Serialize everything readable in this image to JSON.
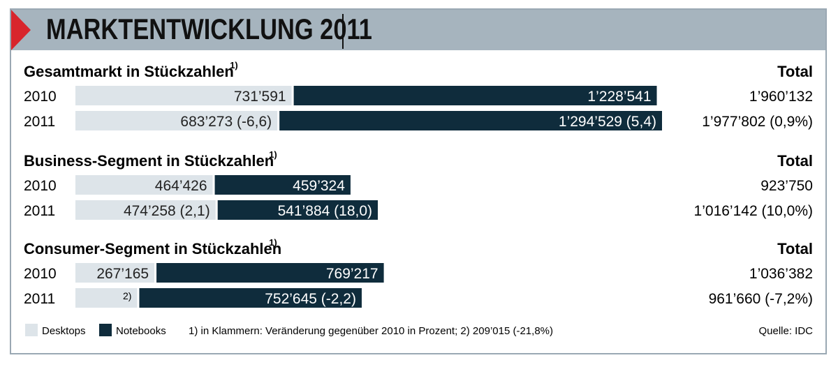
{
  "header": {
    "title": "MARKTENTWICKLUNG 2011"
  },
  "colors": {
    "desktops": "#dde4e9",
    "notebooks": "#0f2c3c",
    "header_bg": "#a6b4be",
    "accent": "#d8252c"
  },
  "chart_data": {
    "type": "bar",
    "stacked": true,
    "orientation": "horizontal",
    "series_names": [
      "Desktops",
      "Notebooks"
    ],
    "total_label": "Total",
    "groups": [
      {
        "title": "Gesamtmarkt in Stückzahlen",
        "title_sup": "1)",
        "rows": [
          {
            "year": "2010",
            "desktops": 731591,
            "notebooks": 1228541,
            "desktops_label": "731’591",
            "notebooks_label": "1’228’541",
            "total_label": "1’960’132"
          },
          {
            "year": "2011",
            "desktops": 683273,
            "notebooks": 1294529,
            "desktops_label": "683’273 (-6,6)",
            "notebooks_label": "1’294’529 (5,4)",
            "total_label": "1’977’802 (0,9%)"
          }
        ]
      },
      {
        "title": "Business-Segment in Stückzahlen",
        "title_sup": "1)",
        "rows": [
          {
            "year": "2010",
            "desktops": 464426,
            "notebooks": 459324,
            "desktops_label": "464’426",
            "notebooks_label": "459’324",
            "total_label": "923’750"
          },
          {
            "year": "2011",
            "desktops": 474258,
            "notebooks": 541884,
            "desktops_label": "474’258 (2,1)",
            "notebooks_label": "541’884 (18,0)",
            "total_label": "1’016’142 (10,0%)"
          }
        ]
      },
      {
        "title": "Consumer-Segment in Stückzahlen",
        "title_sup": "1)",
        "rows": [
          {
            "year": "2010",
            "desktops": 267165,
            "notebooks": 769217,
            "desktops_label": "267’165",
            "notebooks_label": "769’217",
            "total_label": "1’036’382"
          },
          {
            "year": "2011",
            "desktops": 209015,
            "notebooks": 752645,
            "desktops_label": "2)",
            "notebooks_label": "752’645 (-2,2)",
            "total_label": "961’660 (-7,2%)"
          }
        ]
      }
    ]
  },
  "legend": {
    "desktops": "Desktops",
    "notebooks": "Notebooks"
  },
  "footnote": "1) in Klammern: Veränderung gegenüber 2010 in Prozent; 2) 209’015 (-21,8%)",
  "source": "Quelle: IDC"
}
